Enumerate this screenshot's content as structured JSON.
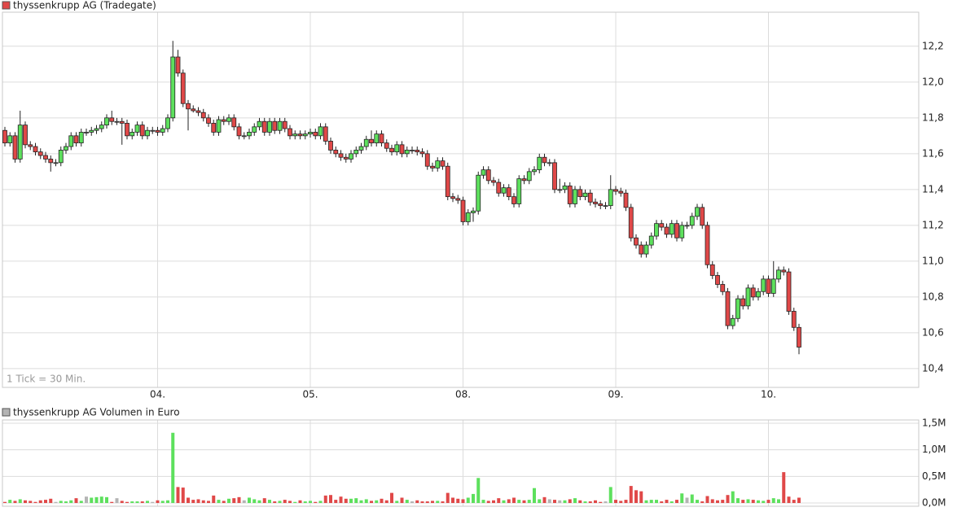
{
  "chart_data": {
    "type": "candlestick",
    "title": "thyssenkrupp AG (Tradegate)",
    "note": "1 Tick = 30 Min.",
    "categories": [
      null,
      null,
      null,
      null,
      null,
      null,
      null,
      null,
      null,
      null,
      null,
      null,
      null,
      null,
      null,
      null,
      null,
      null,
      null,
      null,
      null,
      null,
      null,
      null,
      null,
      null,
      null,
      null,
      null,
      null,
      "04.",
      null,
      null,
      null,
      null,
      null,
      null,
      null,
      null,
      null,
      null,
      null,
      null,
      null,
      null,
      null,
      null,
      null,
      null,
      null,
      null,
      null,
      null,
      null,
      null,
      null,
      null,
      null,
      null,
      null,
      "05.",
      null,
      null,
      null,
      null,
      null,
      null,
      null,
      null,
      null,
      null,
      null,
      null,
      null,
      null,
      null,
      null,
      null,
      null,
      null,
      null,
      null,
      null,
      null,
      null,
      null,
      null,
      null,
      null,
      null,
      "08.",
      null,
      null,
      null,
      null,
      null,
      null,
      null,
      null,
      null,
      null,
      null,
      null,
      null,
      null,
      null,
      null,
      null,
      null,
      null,
      null,
      null,
      null,
      null,
      null,
      null,
      null,
      null,
      null,
      null,
      "09.",
      null,
      null,
      null,
      null,
      null,
      null,
      null,
      null,
      null,
      null,
      null,
      null,
      null,
      null,
      null,
      null,
      null,
      null,
      null,
      null,
      null,
      null,
      null,
      null,
      null,
      null,
      null,
      null,
      null,
      "10.",
      null,
      null,
      null,
      null,
      null,
      null
    ],
    "open": [
      11.73,
      11.66,
      11.7,
      11.57,
      11.76,
      11.65,
      11.64,
      11.61,
      11.59,
      11.57,
      11.55,
      11.55,
      11.62,
      11.64,
      11.7,
      11.66,
      11.72,
      11.72,
      11.73,
      11.74,
      11.76,
      11.8,
      11.78,
      11.78,
      11.77,
      11.7,
      11.72,
      11.76,
      11.7,
      11.73,
      11.73,
      11.72,
      11.74,
      11.8,
      12.14,
      12.05,
      11.88,
      11.85,
      11.84,
      11.83,
      11.8,
      11.77,
      11.72,
      11.79,
      11.78,
      11.8,
      11.75,
      11.7,
      11.7,
      11.72,
      11.75,
      11.78,
      11.72,
      11.78,
      11.73,
      11.78,
      11.74,
      11.7,
      11.71,
      11.7,
      11.71,
      11.72,
      11.7,
      11.75,
      11.67,
      11.62,
      11.6,
      11.58,
      11.57,
      11.6,
      11.62,
      11.64,
      11.68,
      11.66,
      11.71,
      11.66,
      11.63,
      11.61,
      11.65,
      11.6,
      11.62,
      11.62,
      11.61,
      11.6,
      11.53,
      11.52,
      11.56,
      11.53,
      11.36,
      11.35,
      11.34,
      11.22,
      11.27,
      11.28,
      11.48,
      11.51,
      11.45,
      11.44,
      11.38,
      11.41,
      11.36,
      11.32,
      11.46,
      11.45,
      11.5,
      11.51,
      11.58,
      11.55,
      11.55,
      11.4,
      11.4,
      11.42,
      11.32,
      11.4,
      11.36,
      11.38,
      11.33,
      11.32,
      11.31,
      11.31,
      11.4,
      11.39,
      11.38,
      11.3,
      11.13,
      11.09,
      11.04,
      11.09,
      11.14,
      11.21,
      11.19,
      11.15,
      11.21,
      11.13,
      11.2,
      11.2,
      11.25,
      11.3,
      11.2,
      10.98,
      10.92,
      10.87,
      10.83,
      10.64,
      10.68,
      10.79,
      10.75,
      10.85,
      10.8,
      10.83,
      10.9,
      10.82,
      10.9,
      10.95,
      10.94,
      10.72,
      10.63
    ],
    "high": [
      11.75,
      11.72,
      11.72,
      11.84,
      11.78,
      11.67,
      11.66,
      11.63,
      11.61,
      11.59,
      11.57,
      11.64,
      11.66,
      11.72,
      11.72,
      11.74,
      11.74,
      11.75,
      11.76,
      11.78,
      11.82,
      11.84,
      11.8,
      11.8,
      11.79,
      11.74,
      11.78,
      11.78,
      11.75,
      11.75,
      11.75,
      11.76,
      11.82,
      12.23,
      12.18,
      12.07,
      11.9,
      11.87,
      11.86,
      11.85,
      11.82,
      11.79,
      11.81,
      11.81,
      11.82,
      11.82,
      11.77,
      11.72,
      11.74,
      11.77,
      11.8,
      11.8,
      11.8,
      11.8,
      11.8,
      11.8,
      11.76,
      11.73,
      11.73,
      11.73,
      11.74,
      11.74,
      11.77,
      11.77,
      11.69,
      11.64,
      11.62,
      11.6,
      11.62,
      11.64,
      11.66,
      11.7,
      11.73,
      11.73,
      11.73,
      11.68,
      11.65,
      11.67,
      11.67,
      11.64,
      11.64,
      11.64,
      11.63,
      11.62,
      11.55,
      11.58,
      11.58,
      11.55,
      11.38,
      11.37,
      11.36,
      11.29,
      11.3,
      11.5,
      11.53,
      11.53,
      11.47,
      11.46,
      11.43,
      11.43,
      11.38,
      11.48,
      11.48,
      11.52,
      11.53,
      11.6,
      11.6,
      11.57,
      11.57,
      11.46,
      11.44,
      11.44,
      11.42,
      11.42,
      11.4,
      11.4,
      11.35,
      11.34,
      11.33,
      11.48,
      11.42,
      11.41,
      11.4,
      11.32,
      11.15,
      11.11,
      11.11,
      11.16,
      11.23,
      11.23,
      11.21,
      11.23,
      11.23,
      11.22,
      11.22,
      11.27,
      11.32,
      11.32,
      11.22,
      11.0,
      10.94,
      10.89,
      10.85,
      10.7,
      10.81,
      10.81,
      10.87,
      10.87,
      10.85,
      10.92,
      10.92,
      11.0,
      10.97,
      10.97,
      10.96,
      10.74,
      10.65
    ],
    "low": [
      11.64,
      11.64,
      11.55,
      11.55,
      11.63,
      11.62,
      11.59,
      11.57,
      11.55,
      11.5,
      11.53,
      11.53,
      11.6,
      11.62,
      11.64,
      11.64,
      11.7,
      11.7,
      11.71,
      11.72,
      11.74,
      11.76,
      11.76,
      11.65,
      11.68,
      11.68,
      11.7,
      11.68,
      11.68,
      11.71,
      11.7,
      11.7,
      11.72,
      11.78,
      12.03,
      11.86,
      11.73,
      11.83,
      11.81,
      11.78,
      11.75,
      11.7,
      11.7,
      11.76,
      11.76,
      11.73,
      11.68,
      11.68,
      11.68,
      11.7,
      11.73,
      11.7,
      11.7,
      11.71,
      11.71,
      11.72,
      11.68,
      11.68,
      11.68,
      11.68,
      11.69,
      11.68,
      11.68,
      11.65,
      11.6,
      11.58,
      11.56,
      11.55,
      11.55,
      11.58,
      11.6,
      11.62,
      11.64,
      11.64,
      11.64,
      11.61,
      11.59,
      11.59,
      11.58,
      11.58,
      11.6,
      11.59,
      11.58,
      11.51,
      11.5,
      11.5,
      11.51,
      11.34,
      11.33,
      11.32,
      11.2,
      11.2,
      11.22,
      11.26,
      11.46,
      11.43,
      11.42,
      11.36,
      11.36,
      11.34,
      11.3,
      11.3,
      11.43,
      11.43,
      11.48,
      11.49,
      11.53,
      11.53,
      11.38,
      11.38,
      11.38,
      11.3,
      11.3,
      11.34,
      11.34,
      11.31,
      11.3,
      11.29,
      11.29,
      11.29,
      11.37,
      11.36,
      11.28,
      11.11,
      11.07,
      11.02,
      11.02,
      11.07,
      11.12,
      11.17,
      11.13,
      11.13,
      11.11,
      11.11,
      11.18,
      11.18,
      11.23,
      11.18,
      10.96,
      10.9,
      10.85,
      10.81,
      10.62,
      10.62,
      10.66,
      10.73,
      10.73,
      10.78,
      10.78,
      10.81,
      10.8,
      10.8,
      10.88,
      10.92,
      10.7,
      10.61,
      10.48
    ],
    "close": [
      11.66,
      11.7,
      11.57,
      11.76,
      11.65,
      11.64,
      11.61,
      11.59,
      11.57,
      11.55,
      11.55,
      11.62,
      11.64,
      11.7,
      11.66,
      11.72,
      11.72,
      11.73,
      11.74,
      11.76,
      11.8,
      11.78,
      11.78,
      11.77,
      11.7,
      11.72,
      11.76,
      11.7,
      11.73,
      11.73,
      11.72,
      11.74,
      11.8,
      12.14,
      12.05,
      11.88,
      11.85,
      11.84,
      11.83,
      11.8,
      11.77,
      11.72,
      11.79,
      11.78,
      11.8,
      11.75,
      11.7,
      11.7,
      11.72,
      11.75,
      11.78,
      11.72,
      11.78,
      11.73,
      11.78,
      11.74,
      11.7,
      11.71,
      11.7,
      11.71,
      11.72,
      11.7,
      11.75,
      11.67,
      11.62,
      11.6,
      11.58,
      11.57,
      11.6,
      11.62,
      11.64,
      11.68,
      11.66,
      11.71,
      11.66,
      11.63,
      11.61,
      11.65,
      11.6,
      11.62,
      11.62,
      11.61,
      11.6,
      11.53,
      11.52,
      11.56,
      11.53,
      11.36,
      11.35,
      11.34,
      11.22,
      11.27,
      11.28,
      11.48,
      11.51,
      11.45,
      11.44,
      11.38,
      11.41,
      11.36,
      11.32,
      11.46,
      11.45,
      11.5,
      11.51,
      11.58,
      11.55,
      11.55,
      11.4,
      11.4,
      11.42,
      11.32,
      11.4,
      11.36,
      11.38,
      11.33,
      11.32,
      11.31,
      11.31,
      11.4,
      11.39,
      11.38,
      11.3,
      11.13,
      11.09,
      11.04,
      11.09,
      11.14,
      11.21,
      11.19,
      11.15,
      11.21,
      11.13,
      11.2,
      11.2,
      11.25,
      11.3,
      11.2,
      10.98,
      10.92,
      10.87,
      10.83,
      10.64,
      10.68,
      10.79,
      10.75,
      10.85,
      10.8,
      10.83,
      10.9,
      10.82,
      10.9,
      10.95,
      10.94,
      10.72,
      10.63,
      10.52
    ],
    "up_color": "#5de05d",
    "down_color": "#e04848",
    "flat_color": "#b4b4b4",
    "ylim": [
      10.295,
      12.39
    ],
    "yticks": [
      {
        "value": 10.4,
        "label": "10,4"
      },
      {
        "value": 10.6,
        "label": "10,6"
      },
      {
        "value": 10.8,
        "label": "10,8"
      },
      {
        "value": 11.0,
        "label": "11,0"
      },
      {
        "value": 11.2,
        "label": "11,2"
      },
      {
        "value": 11.4,
        "label": "11,4"
      },
      {
        "value": 11.6,
        "label": "11,6"
      },
      {
        "value": 11.8,
        "label": "11,8"
      },
      {
        "value": 12.0,
        "label": "12,0"
      },
      {
        "value": 12.2,
        "label": "12,2"
      }
    ],
    "grid": true,
    "volume": {
      "title": "thyssenkrupp AG Volumen in Euro",
      "values": [
        0.02,
        0.06,
        0.04,
        0.07,
        0.05,
        0.04,
        0.02,
        0.05,
        0.06,
        0.08,
        0.02,
        0.04,
        0.03,
        0.05,
        0.09,
        0.04,
        0.12,
        0.1,
        0.11,
        0.12,
        0.11,
        0.02,
        0.09,
        0.04,
        0.02,
        0.03,
        0.03,
        0.03,
        0.04,
        0.02,
        0.05,
        0.04,
        0.05,
        1.32,
        0.3,
        0.29,
        0.1,
        0.06,
        0.07,
        0.05,
        0.04,
        0.14,
        0.06,
        0.04,
        0.08,
        0.09,
        0.11,
        0.05,
        0.1,
        0.07,
        0.05,
        0.09,
        0.06,
        0.03,
        0.04,
        0.06,
        0.04,
        0.02,
        0.05,
        0.03,
        0.04,
        0.02,
        0.04,
        0.14,
        0.15,
        0.06,
        0.12,
        0.08,
        0.08,
        0.09,
        0.05,
        0.07,
        0.04,
        0.05,
        0.08,
        0.05,
        0.19,
        0.04,
        0.1,
        0.06,
        0.03,
        0.05,
        0.03,
        0.03,
        0.04,
        0.04,
        0.03,
        0.19,
        0.1,
        0.08,
        0.07,
        0.1,
        0.17,
        0.47,
        0.06,
        0.04,
        0.05,
        0.09,
        0.05,
        0.07,
        0.1,
        0.06,
        0.05,
        0.06,
        0.28,
        0.07,
        0.11,
        0.07,
        0.06,
        0.05,
        0.05,
        0.07,
        0.09,
        0.05,
        0.03,
        0.03,
        0.05,
        0.02,
        0.03,
        0.3,
        0.06,
        0.04,
        0.06,
        0.32,
        0.24,
        0.22,
        0.05,
        0.06,
        0.06,
        0.03,
        0.06,
        0.03,
        0.06,
        0.18,
        0.1,
        0.16,
        0.06,
        0.03,
        0.13,
        0.07,
        0.05,
        0.06,
        0.15,
        0.22,
        0.09,
        0.06,
        0.07,
        0.06,
        0.05,
        0.04,
        0.06,
        0.09,
        0.07,
        0.58,
        0.12,
        0.06,
        0.1
      ],
      "ylim": [
        -0.061,
        1.561
      ],
      "yticks": [
        {
          "value": 0,
          "label": "0,0M"
        },
        {
          "value": 0.5,
          "label": "0,5M"
        },
        {
          "value": 1.0,
          "label": "1,0M"
        },
        {
          "value": 1.5,
          "label": "1,5M"
        }
      ]
    }
  }
}
